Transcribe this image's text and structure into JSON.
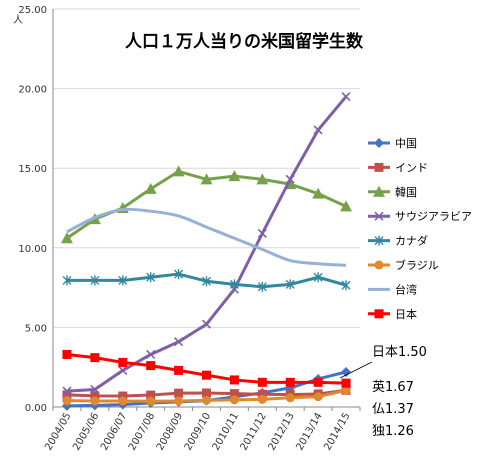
{
  "chart_data": {
    "type": "line",
    "title": "人口１万人当りの米国留学生数",
    "ylabel": "人",
    "ylim": [
      0,
      25
    ],
    "yticks": [
      "0.00",
      "5.00",
      "10.00",
      "15.00",
      "20.00",
      "25.00"
    ],
    "categories": [
      "2004/05",
      "2005/06",
      "2006/07",
      "2007/08",
      "2008/09",
      "2009/10",
      "2010/11",
      "2011/12",
      "2012/13",
      "2013/14",
      "2014/15"
    ],
    "grid": "horizontal",
    "legend_position": "right",
    "series": [
      {
        "name": "中国",
        "color": "#4472C4",
        "marker": "diamond",
        "smooth": false,
        "values": [
          0.07,
          0.1,
          0.15,
          0.25,
          0.32,
          0.4,
          0.64,
          0.89,
          1.2,
          1.76,
          2.2
        ]
      },
      {
        "name": "インド",
        "color": "#C0504D",
        "marker": "square",
        "smooth": false,
        "values": [
          0.76,
          0.7,
          0.69,
          0.75,
          0.87,
          0.88,
          0.84,
          0.8,
          0.78,
          0.82,
          1.05
        ]
      },
      {
        "name": "韓国",
        "color": "#77A04A",
        "marker": "triangle",
        "smooth": false,
        "values": [
          10.6,
          11.8,
          12.5,
          13.7,
          14.8,
          14.3,
          14.5,
          14.3,
          14.0,
          13.4,
          12.6
        ]
      },
      {
        "name": "サウジアラビア",
        "color": "#7F5FA5",
        "marker": "x",
        "smooth": false,
        "values": [
          1.0,
          1.1,
          2.3,
          3.3,
          4.1,
          5.2,
          7.4,
          10.9,
          14.3,
          17.4,
          19.5
        ]
      },
      {
        "name": "カナダ",
        "color": "#31889E",
        "marker": "star",
        "smooth": false,
        "values": [
          7.95,
          7.95,
          7.95,
          8.15,
          8.35,
          7.9,
          7.7,
          7.55,
          7.7,
          8.15,
          7.65
        ]
      },
      {
        "name": "ブラジル",
        "color": "#E0882E",
        "marker": "circle",
        "smooth": false,
        "values": [
          0.4,
          0.38,
          0.38,
          0.36,
          0.38,
          0.42,
          0.45,
          0.48,
          0.58,
          0.65,
          1.05
        ]
      },
      {
        "name": "台湾",
        "color": "#95B2D6",
        "marker": "line",
        "smooth": true,
        "values": [
          11.0,
          11.9,
          12.4,
          12.3,
          12.0,
          11.3,
          10.6,
          9.9,
          9.2,
          9.0,
          8.9
        ]
      },
      {
        "name": "日本",
        "color": "#FF0000",
        "marker": "square",
        "smooth": false,
        "values": [
          3.3,
          3.1,
          2.8,
          2.6,
          2.3,
          2.0,
          1.7,
          1.55,
          1.55,
          1.55,
          1.5
        ]
      }
    ],
    "annotations": [
      "日本1.50",
      "英1.67",
      "仏1.37",
      "独1.26"
    ]
  }
}
